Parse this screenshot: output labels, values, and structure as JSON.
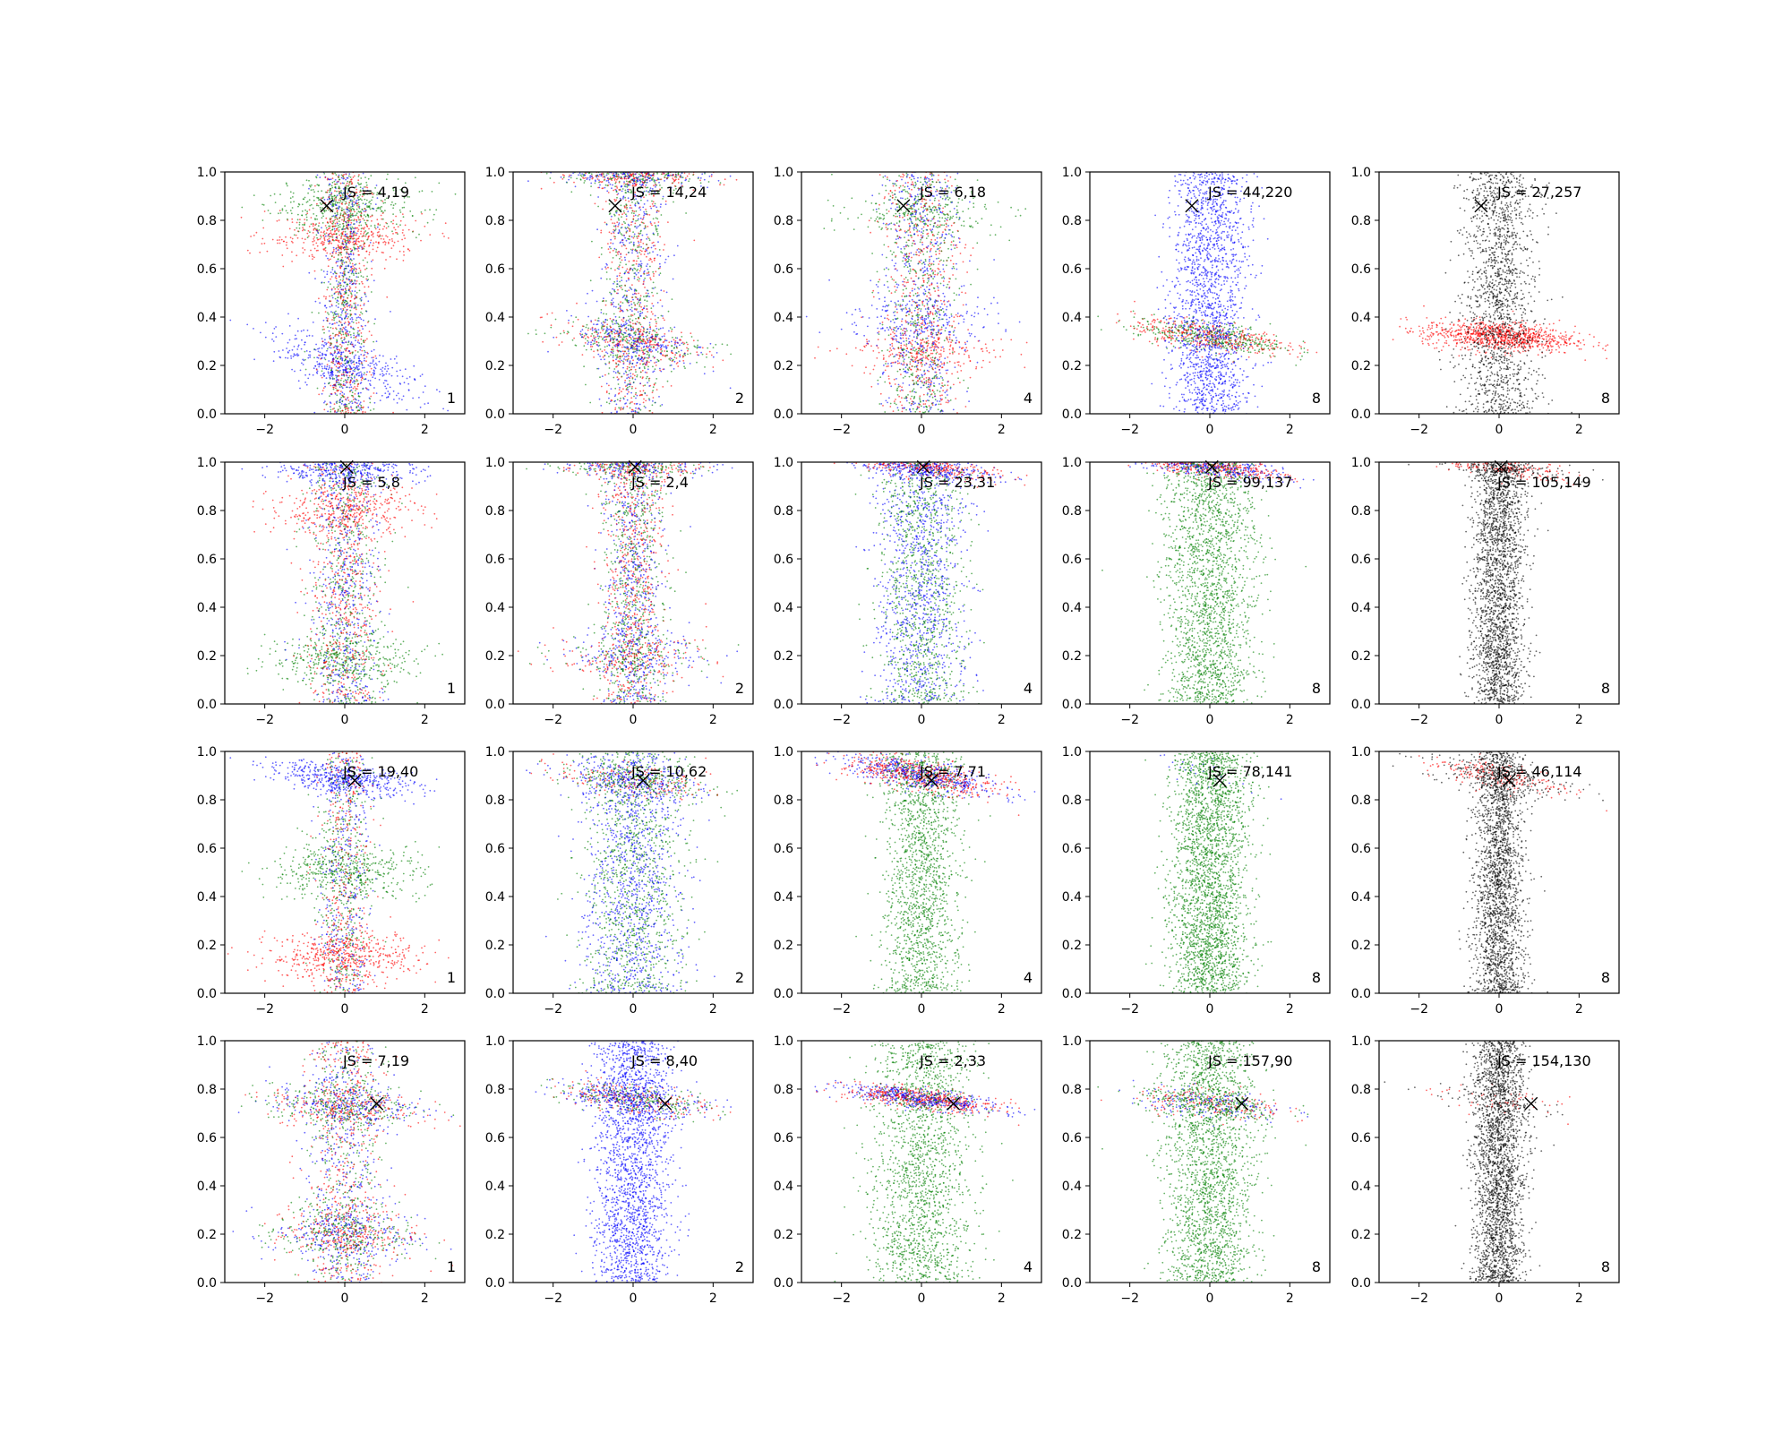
{
  "chart_data": {
    "type": "scatter",
    "layout": {
      "rows": 4,
      "cols": 5
    },
    "axes": {
      "xlim": [
        -3,
        3
      ],
      "ylim": [
        0,
        1
      ],
      "xticks": [
        -2,
        0,
        2
      ],
      "yticks": [
        0.0,
        0.2,
        0.4,
        0.6,
        0.8,
        1.0
      ],
      "xtick_labels": [
        "−2",
        "0",
        "2"
      ],
      "ytick_labels": [
        "0.0",
        "0.2",
        "0.4",
        "0.6",
        "0.8",
        "1.0"
      ],
      "grid": false
    },
    "colors": {
      "blue": "#0000ff",
      "green": "#008000",
      "red": "#ff0000",
      "black": "#000000"
    },
    "marker": {
      "x": [
        -0.45,
        0.05,
        0.25,
        0.8
      ],
      "y": [
        0.86,
        0.98,
        0.88,
        0.74
      ]
    },
    "panels": [
      {
        "js": "JS = 4,19",
        "corner": "1",
        "colors": [
          "blue",
          "green",
          "red"
        ],
        "pattern": "bands",
        "bands": [
          [
            0.2,
            0.05,
            -0.05
          ],
          [
            0.85,
            0.06,
            0
          ],
          [
            0.73,
            0.05,
            0
          ]
        ],
        "spread": [
          0.45,
          0.55,
          0.2
        ]
      },
      {
        "js": "JS = 14,24",
        "corner": "2",
        "colors": [
          "blue",
          "green",
          "red"
        ],
        "pattern": "bands",
        "bands": [
          [
            0.3,
            0.04,
            -0.03
          ],
          [
            0.99,
            0.03,
            0
          ]
        ],
        "spread": [
          0.5,
          0.5,
          0.25
        ]
      },
      {
        "js": "JS = 6,18",
        "corner": "4",
        "colors": [
          "blue",
          "green",
          "red"
        ],
        "pattern": "bands",
        "bands": [
          [
            0.38,
            0.06,
            0
          ],
          [
            0.83,
            0.05,
            0
          ],
          [
            0.25,
            0.05,
            0
          ]
        ],
        "spread": [
          0.25,
          0.6,
          0.3
        ]
      },
      {
        "js": "JS = 44,220",
        "corner": "8",
        "colors": [
          "blue",
          "green",
          "red"
        ],
        "pattern": "split",
        "main": [
          "red",
          "green"
        ],
        "bands": [
          [
            0.32,
            0.03,
            -0.02
          ]
        ],
        "diffuse": [
          "blue"
        ],
        "spread": [
          0.3,
          0.65,
          0.3
        ]
      },
      {
        "js": "JS = 27,257",
        "corner": "8",
        "colors": [
          "black",
          "red"
        ],
        "pattern": "split",
        "main": [
          "red"
        ],
        "bands": [
          [
            0.32,
            0.03,
            -0.01
          ]
        ],
        "diffuse": [
          "black"
        ],
        "spread": [
          0.35,
          0.6,
          0.3
        ]
      },
      {
        "js": "JS = 5,8",
        "corner": "1",
        "colors": [
          "blue",
          "green",
          "red"
        ],
        "pattern": "bands",
        "bands": [
          [
            0.97,
            0.03,
            0
          ],
          [
            0.18,
            0.05,
            0
          ],
          [
            0.8,
            0.05,
            0
          ]
        ],
        "spread": [
          0.4,
          0.6,
          0.3
        ]
      },
      {
        "js": "JS = 2,4",
        "corner": "2",
        "colors": [
          "blue",
          "green",
          "red"
        ],
        "pattern": "bands",
        "bands": [
          [
            0.98,
            0.02,
            0
          ],
          [
            0.2,
            0.05,
            0
          ]
        ],
        "spread": [
          0.3,
          0.65,
          0.25
        ]
      },
      {
        "js": "JS = 23,31",
        "corner": "4",
        "colors": [
          "blue",
          "green",
          "red"
        ],
        "pattern": "split",
        "main": [
          "red",
          "blue"
        ],
        "bands": [
          [
            0.98,
            0.02,
            -0.02
          ]
        ],
        "diffuse": [
          "green",
          "blue"
        ],
        "spread": [
          0.25,
          0.75,
          0.35
        ]
      },
      {
        "js": "JS = 99,137",
        "corner": "8",
        "colors": [
          "blue",
          "green",
          "red"
        ],
        "pattern": "split",
        "main": [
          "red",
          "blue"
        ],
        "bands": [
          [
            0.98,
            0.02,
            -0.02
          ]
        ],
        "diffuse": [
          "green"
        ],
        "spread": [
          0.3,
          0.75,
          0.35
        ]
      },
      {
        "js": "JS = 105,149",
        "corner": "8",
        "colors": [
          "black",
          "red"
        ],
        "pattern": "split",
        "main": [
          "red",
          "black"
        ],
        "bands": [
          [
            0.98,
            0.02,
            -0.02
          ]
        ],
        "diffuse": [
          "black"
        ],
        "spread": [
          0.15,
          0.85,
          0.2
        ]
      },
      {
        "js": "JS = 19,40",
        "corner": "1",
        "colors": [
          "blue",
          "green",
          "red"
        ],
        "pattern": "bands",
        "bands": [
          [
            0.89,
            0.03,
            -0.02
          ],
          [
            0.5,
            0.06,
            0
          ],
          [
            0.15,
            0.05,
            0
          ]
        ],
        "spread": [
          0.55,
          0.4,
          0.2
        ]
      },
      {
        "js": "JS = 10,62",
        "corner": "2",
        "colors": [
          "blue",
          "green",
          "red"
        ],
        "pattern": "split",
        "main": [
          "red",
          "green",
          "blue"
        ],
        "bands": [
          [
            0.88,
            0.03,
            -0.02
          ]
        ],
        "diffuse": [
          "green",
          "blue"
        ],
        "spread": [
          0.2,
          0.8,
          0.4
        ]
      },
      {
        "js": "JS = 7,71",
        "corner": "4",
        "colors": [
          "blue",
          "green",
          "red"
        ],
        "pattern": "split",
        "main": [
          "blue",
          "red"
        ],
        "bands": [
          [
            0.9,
            0.03,
            -0.03
          ]
        ],
        "diffuse": [
          "green"
        ],
        "spread": [
          0.4,
          0.6,
          0.3
        ]
      },
      {
        "js": "JS = 78,141",
        "corner": "8",
        "colors": [
          "blue",
          "green",
          "red"
        ],
        "pattern": "split",
        "main": [
          "blue",
          "green"
        ],
        "bands": [
          [
            0.9,
            0.03,
            -0.03
          ]
        ],
        "diffuse": [
          "green"
        ],
        "spread": [
          0.02,
          0.98,
          0.3
        ]
      },
      {
        "js": "JS = 46,114",
        "corner": "8",
        "colors": [
          "black",
          "red"
        ],
        "pattern": "split",
        "main": [
          "red",
          "black"
        ],
        "bands": [
          [
            0.9,
            0.03,
            -0.03
          ]
        ],
        "diffuse": [
          "black"
        ],
        "spread": [
          0.15,
          0.85,
          0.2
        ]
      },
      {
        "js": "JS = 7,19",
        "corner": "1",
        "colors": [
          "blue",
          "green",
          "red"
        ],
        "pattern": "bands",
        "bands": [
          [
            0.73,
            0.04,
            -0.01
          ],
          [
            0.2,
            0.06,
            0
          ]
        ],
        "spread": [
          0.5,
          0.5,
          0.3
        ]
      },
      {
        "js": "JS = 8,40",
        "corner": "2",
        "colors": [
          "blue",
          "green",
          "red"
        ],
        "pattern": "split",
        "main": [
          "green",
          "red",
          "blue"
        ],
        "bands": [
          [
            0.76,
            0.03,
            -0.02
          ]
        ],
        "diffuse": [
          "blue"
        ],
        "spread": [
          0.25,
          0.75,
          0.3
        ]
      },
      {
        "js": "JS = 2,33",
        "corner": "4",
        "colors": [
          "blue",
          "green",
          "red"
        ],
        "pattern": "split",
        "main": [
          "blue",
          "red"
        ],
        "bands": [
          [
            0.76,
            0.02,
            -0.02
          ]
        ],
        "diffuse": [
          "green"
        ],
        "spread": [
          0.35,
          0.65,
          0.4
        ]
      },
      {
        "js": "JS = 157,90",
        "corner": "8",
        "colors": [
          "blue",
          "green",
          "red"
        ],
        "pattern": "split",
        "main": [
          "blue",
          "green",
          "red"
        ],
        "bands": [
          [
            0.74,
            0.03,
            -0.015
          ]
        ],
        "diffuse": [
          "green"
        ],
        "spread": [
          0.2,
          0.8,
          0.35
        ]
      },
      {
        "js": "JS = 154,130",
        "corner": "8",
        "colors": [
          "black",
          "red"
        ],
        "pattern": "split",
        "main": [
          "black",
          "red"
        ],
        "bands": [
          [
            0.75,
            0.025,
            -0.02
          ]
        ],
        "diffuse": [
          "black"
        ],
        "spread": [
          0.04,
          0.96,
          0.2
        ]
      }
    ]
  }
}
